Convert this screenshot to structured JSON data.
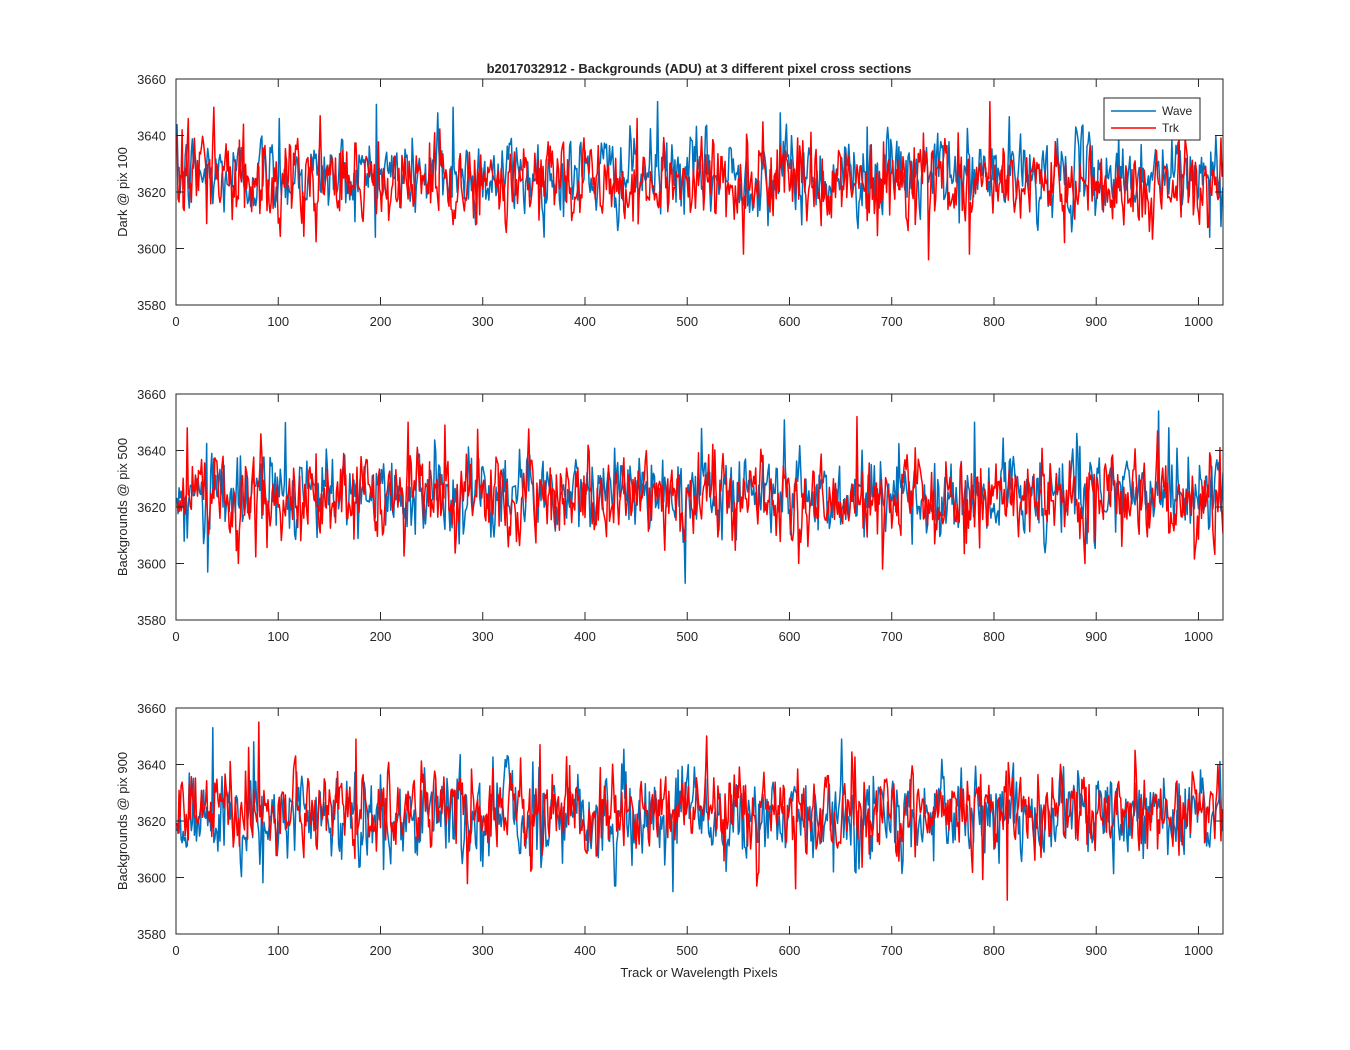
{
  "title": "b2017032912 - Backgrounds (ADU) at 3 different pixel cross sections",
  "xlabel": "Track or Wavelength Pixels",
  "legend": [
    "Wave",
    "Trk"
  ],
  "colors": {
    "wave": "#0072bd",
    "trk": "#ff0000",
    "axis": "#262626",
    "background": "#ffffff"
  },
  "chart_data": [
    {
      "type": "line",
      "ylabel": "Dark @ pix 100",
      "xlim": [
        0,
        1024
      ],
      "ylim": [
        3580,
        3660
      ],
      "xticks": [
        0,
        100,
        200,
        300,
        400,
        500,
        600,
        700,
        800,
        900,
        1000
      ],
      "yticks": [
        3580,
        3600,
        3620,
        3640,
        3660
      ],
      "legend_location": "top-right",
      "series": [
        {
          "name": "Wave",
          "n_points": 1024,
          "mean": 3626,
          "std": 6.5,
          "min": 3602,
          "max": 3652,
          "notable_peaks": [
            [
              100,
              3646
            ],
            [
              195,
              3651
            ],
            [
              255,
              3648
            ],
            [
              270,
              3650
            ],
            [
              470,
              3652
            ],
            [
              590,
              3648
            ],
            [
              675,
              3643
            ],
            [
              1010,
              3604
            ]
          ]
        },
        {
          "name": "Trk",
          "n_points": 1024,
          "mean": 3623,
          "std": 7.0,
          "min": 3596,
          "max": 3652,
          "notable_peaks": [
            [
              5,
              3642
            ],
            [
              65,
              3644
            ],
            [
              140,
              3647
            ],
            [
              450,
              3646
            ],
            [
              795,
              3652
            ],
            [
              735,
              3596
            ],
            [
              775,
              3598
            ]
          ]
        }
      ]
    },
    {
      "type": "line",
      "ylabel": "Backgrounds @ pix 500",
      "xlim": [
        0,
        1024
      ],
      "ylim": [
        3580,
        3660
      ],
      "xticks": [
        0,
        100,
        200,
        300,
        400,
        500,
        600,
        700,
        800,
        900,
        1000
      ],
      "yticks": [
        3580,
        3600,
        3620,
        3640,
        3660
      ],
      "series": [
        {
          "name": "Wave",
          "n_points": 1024,
          "mean": 3625,
          "std": 7.0,
          "min": 3593,
          "max": 3654,
          "notable_peaks": [
            [
              30,
              3597
            ],
            [
              497,
              3593
            ],
            [
              960,
              3654
            ],
            [
              970,
              3648
            ],
            [
              880,
              3646
            ],
            [
              780,
              3650
            ]
          ]
        },
        {
          "name": "Trk",
          "n_points": 1024,
          "mean": 3624,
          "std": 7.0,
          "min": 3598,
          "max": 3652,
          "notable_peaks": [
            [
              10,
              3648
            ],
            [
              226,
              3650
            ],
            [
              262,
              3649
            ],
            [
              665,
              3652
            ],
            [
              690,
              3598
            ],
            [
              888,
              3600
            ],
            [
              1020,
              3641
            ]
          ]
        }
      ]
    },
    {
      "type": "line",
      "ylabel": "Backgrounds @ pix 900",
      "xlim": [
        0,
        1024
      ],
      "ylim": [
        3580,
        3660
      ],
      "xticks": [
        0,
        100,
        200,
        300,
        400,
        500,
        600,
        700,
        800,
        900,
        1000
      ],
      "yticks": [
        3580,
        3600,
        3620,
        3640,
        3660
      ],
      "series": [
        {
          "name": "Wave",
          "n_points": 1024,
          "mean": 3621,
          "std": 7.5,
          "min": 3595,
          "max": 3653,
          "notable_peaks": [
            [
              35,
              3653
            ],
            [
              75,
              3648
            ],
            [
              650,
              3649
            ],
            [
              485,
              3595
            ],
            [
              1020,
              3641
            ]
          ]
        },
        {
          "name": "Trk",
          "n_points": 1024,
          "mean": 3623,
          "std": 7.0,
          "min": 3592,
          "max": 3655,
          "notable_peaks": [
            [
              80,
              3655
            ],
            [
              70,
              3646
            ],
            [
              175,
              3649
            ],
            [
              355,
              3647
            ],
            [
              812,
              3592
            ],
            [
              605,
              3596
            ]
          ]
        }
      ]
    }
  ]
}
